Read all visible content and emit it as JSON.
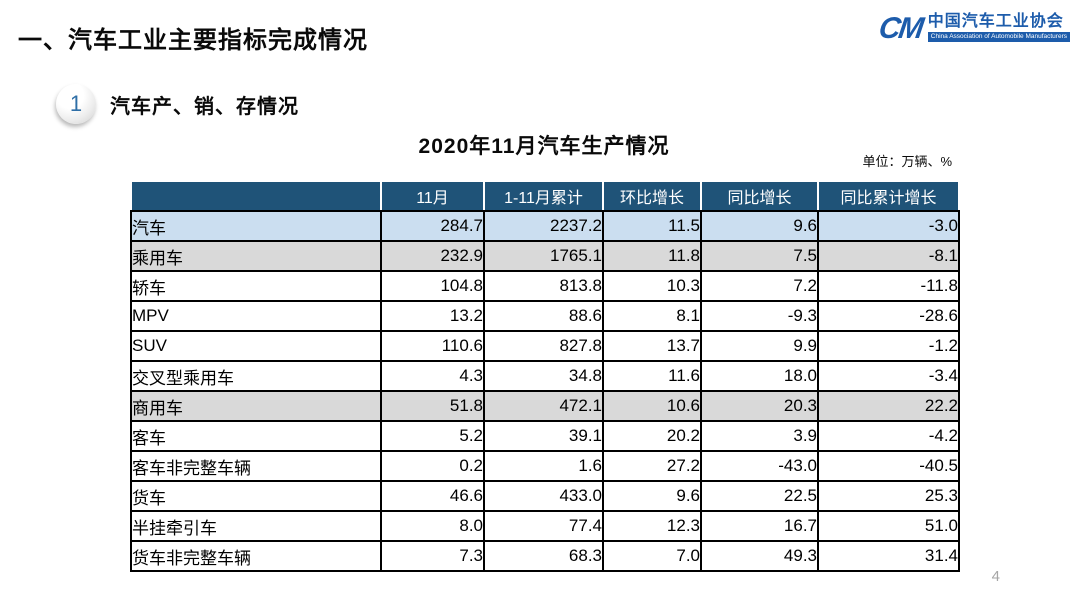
{
  "slide": {
    "title": "一、汽车工业主要指标完成情况",
    "page_number": "4"
  },
  "logo": {
    "monogram": "CM",
    "org_cn": "中国汽车工业协会",
    "org_en": "China Association of Automobile Manufacturers"
  },
  "section": {
    "badge": "1",
    "heading": "汽车产、销、存情况"
  },
  "table": {
    "title": "2020年11月汽车生产情况",
    "unit_note": "单位：万辆、%",
    "columns": [
      "",
      "11月",
      "1-11月累计",
      "环比增长",
      "同比增长",
      "同比累计增长"
    ],
    "rows": [
      {
        "label": "汽车",
        "indent": 0,
        "style": "blue",
        "values": [
          "284.7",
          "2237.2",
          "11.5",
          "9.6",
          "-3.0"
        ]
      },
      {
        "label": "乘用车",
        "indent": 1,
        "style": "gray",
        "values": [
          "232.9",
          "1765.1",
          "11.8",
          "7.5",
          "-8.1"
        ]
      },
      {
        "label": "轿车",
        "indent": 2,
        "style": "white",
        "values": [
          "104.8",
          "813.8",
          "10.3",
          "7.2",
          "-11.8"
        ]
      },
      {
        "label": "MPV",
        "indent": 2,
        "style": "white",
        "values": [
          "13.2",
          "88.6",
          "8.1",
          "-9.3",
          "-28.6"
        ]
      },
      {
        "label": "SUV",
        "indent": 2,
        "style": "white",
        "values": [
          "110.6",
          "827.8",
          "13.7",
          "9.9",
          "-1.2"
        ]
      },
      {
        "label": "交叉型乘用车",
        "indent": 2,
        "style": "white",
        "values": [
          "4.3",
          "34.8",
          "11.6",
          "18.0",
          "-3.4"
        ]
      },
      {
        "label": "商用车",
        "indent": 1,
        "style": "gray",
        "values": [
          "51.8",
          "472.1",
          "10.6",
          "20.3",
          "22.2"
        ]
      },
      {
        "label": "客车",
        "indent": 2,
        "style": "white",
        "values": [
          "5.2",
          "39.1",
          "20.2",
          "3.9",
          "-4.2"
        ]
      },
      {
        "label": "客车非完整车辆",
        "indent": 3,
        "style": "white",
        "values": [
          "0.2",
          "1.6",
          "27.2",
          "-43.0",
          "-40.5"
        ]
      },
      {
        "label": "货车",
        "indent": 2,
        "style": "white",
        "values": [
          "46.6",
          "433.0",
          "9.6",
          "22.5",
          "25.3"
        ]
      },
      {
        "label": "半挂牵引车",
        "indent": 3,
        "style": "white",
        "values": [
          "8.0",
          "77.4",
          "12.3",
          "16.7",
          "51.0"
        ]
      },
      {
        "label": "货车非完整车辆",
        "indent": 3,
        "style": "white",
        "values": [
          "7.3",
          "68.3",
          "7.0",
          "49.3",
          "31.4"
        ]
      }
    ]
  },
  "colors": {
    "header_bg": "#1f5378",
    "row_blue": "#cbdef0",
    "row_gray": "#d9d9d9",
    "accent": "#1d5cab"
  }
}
